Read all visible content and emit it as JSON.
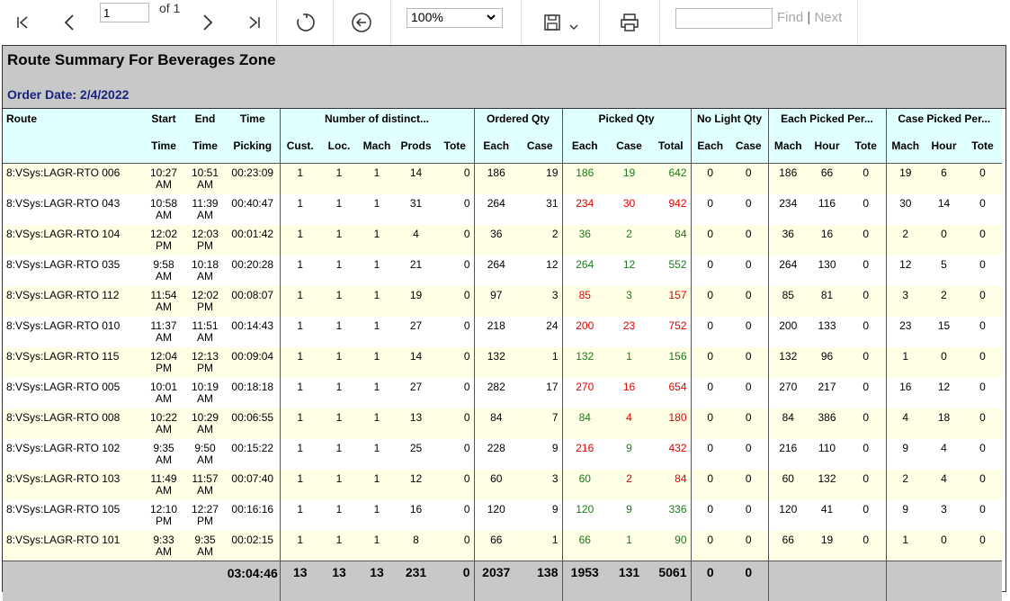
{
  "toolbar": {
    "page_value": "1",
    "of_pages": "of 1",
    "zoom": "100%",
    "find_placeholder": "",
    "find_label": "Find",
    "find_sep": "|",
    "next_label": "Next"
  },
  "report": {
    "title": "Route Summary For Beverages Zone",
    "order_date": "Order Date: 2/4/2022"
  },
  "headers": {
    "route": "Route",
    "start1": "Start",
    "start2": "Time",
    "end1": "End",
    "end2": "Time",
    "time1": "Time",
    "time2": "Picking",
    "distinct": "Number of distinct...",
    "cust": "Cust.",
    "loc": "Loc.",
    "mach": "Mach",
    "prods": "Prods",
    "tote": "Tote",
    "ordered": "Ordered Qty",
    "o_each": "Each",
    "o_case": "Case",
    "picked": "Picked Qty",
    "p_each": "Each",
    "p_case": "Case",
    "p_total": "Total",
    "nolight": "No Light Qty",
    "n_each": "Each",
    "n_case": "Case",
    "eachper": "Each Picked Per...",
    "e_mach": "Mach",
    "e_hour": "Hour",
    "e_tote": "Tote",
    "caseper": "Case Picked Per...",
    "c_mach": "Mach",
    "c_hour": "Hour",
    "c_tote": "Tote"
  },
  "rows": [
    {
      "route": "8:VSys:LAGR-RTO 006",
      "start": "10:27 AM",
      "end": "10:51 AM",
      "picking": "00:23:09",
      "cust": "1",
      "loc": "1",
      "mach": "1",
      "prods": "14",
      "tote": "0",
      "o_each": "186",
      "o_case": "19",
      "p_each": "186",
      "p_case": "19",
      "p_total": "642",
      "n_each": "0",
      "n_case": "0",
      "e_mach": "186",
      "e_hour": "66",
      "e_tote": "0",
      "c_mach": "19",
      "c_hour": "6",
      "c_tote": "0",
      "picked_color": "green"
    },
    {
      "route": "8:VSys:LAGR-RTO 043",
      "start": "10:58 AM",
      "end": "11:39 AM",
      "picking": "00:40:47",
      "cust": "1",
      "loc": "1",
      "mach": "1",
      "prods": "31",
      "tote": "0",
      "o_each": "264",
      "o_case": "31",
      "p_each": "234",
      "p_case": "30",
      "p_total": "942",
      "n_each": "0",
      "n_case": "0",
      "e_mach": "234",
      "e_hour": "116",
      "e_tote": "0",
      "c_mach": "30",
      "c_hour": "14",
      "c_tote": "0",
      "picked_color": "red"
    },
    {
      "route": "8:VSys:LAGR-RTO 104",
      "start": "12:02 PM",
      "end": "12:03 PM",
      "picking": "00:01:42",
      "cust": "1",
      "loc": "1",
      "mach": "1",
      "prods": "4",
      "tote": "0",
      "o_each": "36",
      "o_case": "2",
      "p_each": "36",
      "p_case": "2",
      "p_total": "84",
      "n_each": "0",
      "n_case": "0",
      "e_mach": "36",
      "e_hour": "16",
      "e_tote": "0",
      "c_mach": "2",
      "c_hour": "0",
      "c_tote": "0",
      "picked_color": "green"
    },
    {
      "route": "8:VSys:LAGR-RTO 035",
      "start": "9:58 AM",
      "end": "10:18 AM",
      "picking": "00:20:28",
      "cust": "1",
      "loc": "1",
      "mach": "1",
      "prods": "21",
      "tote": "0",
      "o_each": "264",
      "o_case": "12",
      "p_each": "264",
      "p_case": "12",
      "p_total": "552",
      "n_each": "0",
      "n_case": "0",
      "e_mach": "264",
      "e_hour": "130",
      "e_tote": "0",
      "c_mach": "12",
      "c_hour": "5",
      "c_tote": "0",
      "picked_color": "green"
    },
    {
      "route": "8:VSys:LAGR-RTO 112",
      "start": "11:54 AM",
      "end": "12:02 PM",
      "picking": "00:08:07",
      "cust": "1",
      "loc": "1",
      "mach": "1",
      "prods": "19",
      "tote": "0",
      "o_each": "97",
      "o_case": "3",
      "p_each": "85",
      "p_case": "3",
      "p_total": "157",
      "n_each": "0",
      "n_case": "0",
      "e_mach": "85",
      "e_hour": "81",
      "e_tote": "0",
      "c_mach": "3",
      "c_hour": "2",
      "c_tote": "0",
      "picked_color": "mixed_each_red"
    },
    {
      "route": "8:VSys:LAGR-RTO 010",
      "start": "11:37 AM",
      "end": "11:51 AM",
      "picking": "00:14:43",
      "cust": "1",
      "loc": "1",
      "mach": "1",
      "prods": "27",
      "tote": "0",
      "o_each": "218",
      "o_case": "24",
      "p_each": "200",
      "p_case": "23",
      "p_total": "752",
      "n_each": "0",
      "n_case": "0",
      "e_mach": "200",
      "e_hour": "133",
      "e_tote": "0",
      "c_mach": "23",
      "c_hour": "15",
      "c_tote": "0",
      "picked_color": "red"
    },
    {
      "route": "8:VSys:LAGR-RTO 115",
      "start": "12:04 PM",
      "end": "12:13 PM",
      "picking": "00:09:04",
      "cust": "1",
      "loc": "1",
      "mach": "1",
      "prods": "14",
      "tote": "0",
      "o_each": "132",
      "o_case": "1",
      "p_each": "132",
      "p_case": "1",
      "p_total": "156",
      "n_each": "0",
      "n_case": "0",
      "e_mach": "132",
      "e_hour": "96",
      "e_tote": "0",
      "c_mach": "1",
      "c_hour": "0",
      "c_tote": "0",
      "picked_color": "green"
    },
    {
      "route": "8:VSys:LAGR-RTO 005",
      "start": "10:01 AM",
      "end": "10:19 AM",
      "picking": "00:18:18",
      "cust": "1",
      "loc": "1",
      "mach": "1",
      "prods": "27",
      "tote": "0",
      "o_each": "282",
      "o_case": "17",
      "p_each": "270",
      "p_case": "16",
      "p_total": "654",
      "n_each": "0",
      "n_case": "0",
      "e_mach": "270",
      "e_hour": "217",
      "e_tote": "0",
      "c_mach": "16",
      "c_hour": "12",
      "c_tote": "0",
      "picked_color": "red"
    },
    {
      "route": "8:VSys:LAGR-RTO 008",
      "start": "10:22 AM",
      "end": "10:29 AM",
      "picking": "00:06:55",
      "cust": "1",
      "loc": "1",
      "mach": "1",
      "prods": "13",
      "tote": "0",
      "o_each": "84",
      "o_case": "7",
      "p_each": "84",
      "p_case": "4",
      "p_total": "180",
      "n_each": "0",
      "n_case": "0",
      "e_mach": "84",
      "e_hour": "386",
      "e_tote": "0",
      "c_mach": "4",
      "c_hour": "18",
      "c_tote": "0",
      "picked_color": "mixed_each_green"
    },
    {
      "route": "8:VSys:LAGR-RTO 102",
      "start": "9:35 AM",
      "end": "9:50 AM",
      "picking": "00:15:22",
      "cust": "1",
      "loc": "1",
      "mach": "1",
      "prods": "25",
      "tote": "0",
      "o_each": "228",
      "o_case": "9",
      "p_each": "216",
      "p_case": "9",
      "p_total": "432",
      "n_each": "0",
      "n_case": "0",
      "e_mach": "216",
      "e_hour": "110",
      "e_tote": "0",
      "c_mach": "9",
      "c_hour": "4",
      "c_tote": "0",
      "picked_color": "mixed_each_red"
    },
    {
      "route": "8:VSys:LAGR-RTO 103",
      "start": "11:49 AM",
      "end": "11:57 AM",
      "picking": "00:07:40",
      "cust": "1",
      "loc": "1",
      "mach": "1",
      "prods": "12",
      "tote": "0",
      "o_each": "60",
      "o_case": "3",
      "p_each": "60",
      "p_case": "2",
      "p_total": "84",
      "n_each": "0",
      "n_case": "0",
      "e_mach": "60",
      "e_hour": "132",
      "e_tote": "0",
      "c_mach": "2",
      "c_hour": "4",
      "c_tote": "0",
      "picked_color": "mixed_each_green"
    },
    {
      "route": "8:VSys:LAGR-RTO 105",
      "start": "12:10 PM",
      "end": "12:27 PM",
      "picking": "00:16:16",
      "cust": "1",
      "loc": "1",
      "mach": "1",
      "prods": "16",
      "tote": "0",
      "o_each": "120",
      "o_case": "9",
      "p_each": "120",
      "p_case": "9",
      "p_total": "336",
      "n_each": "0",
      "n_case": "0",
      "e_mach": "120",
      "e_hour": "41",
      "e_tote": "0",
      "c_mach": "9",
      "c_hour": "3",
      "c_tote": "0",
      "picked_color": "green"
    },
    {
      "route": "8:VSys:LAGR-RTO 101",
      "start": "9:33 AM",
      "end": "9:35 AM",
      "picking": "00:02:15",
      "cust": "1",
      "loc": "1",
      "mach": "1",
      "prods": "8",
      "tote": "0",
      "o_each": "66",
      "o_case": "1",
      "p_each": "66",
      "p_case": "1",
      "p_total": "90",
      "n_each": "0",
      "n_case": "0",
      "e_mach": "66",
      "e_hour": "19",
      "e_tote": "0",
      "c_mach": "1",
      "c_hour": "0",
      "c_tote": "0",
      "picked_color": "green"
    }
  ],
  "totals": {
    "picking": "03:04:46",
    "cust": "13",
    "loc": "13",
    "mach": "13",
    "prods": "231",
    "tote": "0",
    "o_each": "2037",
    "o_case": "138",
    "p_each": "1953",
    "p_case": "131",
    "p_total": "5061",
    "n_each": "0",
    "n_case": "0"
  },
  "colors": {
    "green": "#1b7a1b",
    "red": "#e00000",
    "header_bg": "#e0ffff",
    "alt_row": "#ffffe6",
    "title_bg": "#c8c8c8"
  }
}
